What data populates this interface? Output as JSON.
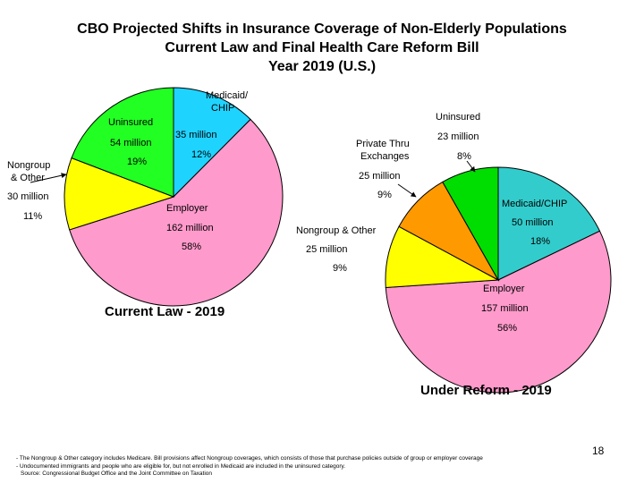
{
  "title": {
    "line1": "CBO Projected Shifts in Insurance Coverage of Non-Elderly Populations",
    "line2": "Current Law and Final Health Care Reform Bill",
    "line3": "Year 2019 (U.S.)"
  },
  "chart_data": [
    {
      "type": "pie",
      "title": "Current Law - 2019",
      "slices": [
        {
          "name": "Medicaid/ CHIP",
          "value": 35,
          "unit": "million",
          "percent": "12%",
          "color": "#1fd3ff"
        },
        {
          "name": "Employer",
          "value": 162,
          "unit": "million",
          "percent": "58%",
          "color": "#ff9acc"
        },
        {
          "name": "Nongroup & Other",
          "value": 30,
          "unit": "million",
          "percent": "11%",
          "color": "#ffff00"
        },
        {
          "name": "Uninsured",
          "value": 54,
          "unit": "million",
          "percent": "19%",
          "color": "#22ff22"
        }
      ],
      "labels": {
        "medicaid_name_1": "Medicaid/",
        "medicaid_name_2": "CHIP",
        "medicaid_amount": "35 million",
        "medicaid_pct": "12%",
        "uninsured_name": "Uninsured",
        "uninsured_amount": "54 million",
        "uninsured_pct": "19%",
        "nongroup_name_1": "Nongroup",
        "nongroup_name_2": "& Other",
        "nongroup_amount": "30 million",
        "nongroup_pct": "11%",
        "employer_name": "Employer",
        "employer_amount": "162 million",
        "employer_pct": "58%"
      }
    },
    {
      "type": "pie",
      "title": "Under Reform - 2019",
      "slices": [
        {
          "name": "Medicaid/CHIP",
          "value": 50,
          "unit": "million",
          "percent": "18%",
          "color": "#33cccc"
        },
        {
          "name": "Employer",
          "value": 157,
          "unit": "million",
          "percent": "56%",
          "color": "#ff9acc"
        },
        {
          "name": "Nongroup & Other",
          "value": 25,
          "unit": "million",
          "percent": "9%",
          "color": "#ffff00"
        },
        {
          "name": "Private Thru Exchanges",
          "value": 25,
          "unit": "million",
          "percent": "9%",
          "color": "#ff9900"
        },
        {
          "name": "Uninsured",
          "value": 23,
          "unit": "million",
          "percent": "8%",
          "color": "#00dd00"
        }
      ],
      "labels": {
        "uninsured_name": "Uninsured",
        "uninsured_amount": "23 million",
        "uninsured_pct": "8%",
        "exchanges_name_1": "Private Thru",
        "exchanges_name_2": "Exchanges",
        "exchanges_amount": "25 million",
        "exchanges_pct": "9%",
        "medicaid_name": "Medicaid/CHIP",
        "medicaid_amount": "50 million",
        "medicaid_pct": "18%",
        "nongroup_name": "Nongroup & Other",
        "nongroup_amount": "25 million",
        "nongroup_pct": "9%",
        "employer_name": "Employer",
        "employer_amount": "157 million",
        "employer_pct": "56%"
      }
    }
  ],
  "footnotes": {
    "note1": "- The Nongroup & Other category includes Medicare. Bill provisions affect Nongroup coverages, which consists of those that purchase policies outside of group or employer coverage",
    "note2": "- Undocumented immigrants and people who are eligible for, but not enrolled in Medicaid are included in the uninsured category.",
    "note3": "Source: Congressional Budget Office and the Joint Committee on Taxation"
  },
  "page_number": "18"
}
